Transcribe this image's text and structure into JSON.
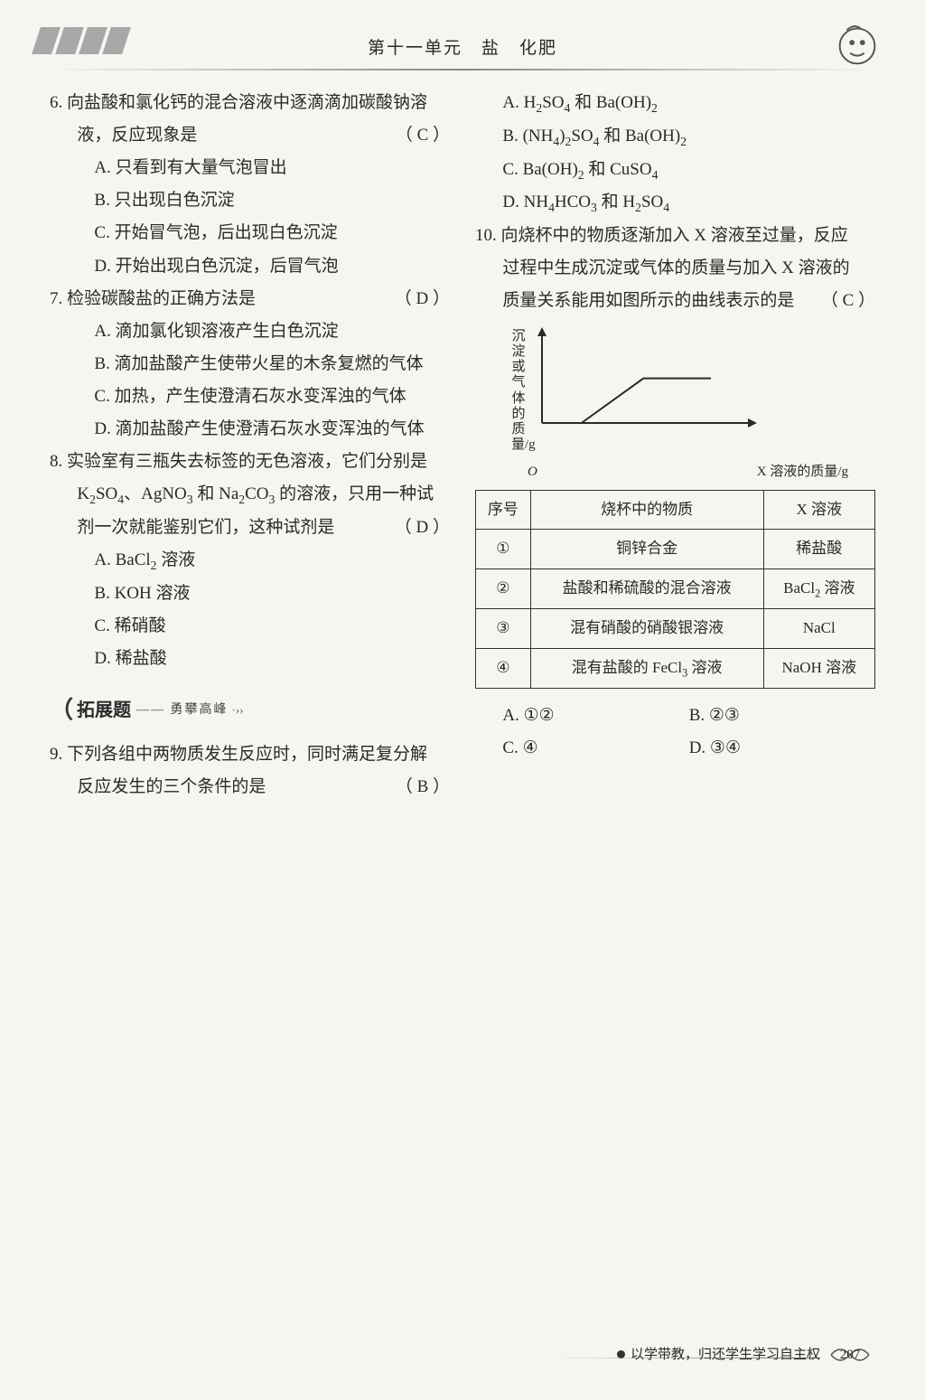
{
  "header": {
    "title": "第十一单元　盐　化肥"
  },
  "q6": {
    "stem": "6. 向盐酸和氯化钙的混合溶液中逐滴滴加碳酸钠溶液，反应现象是",
    "answer": "（ C ）",
    "opts": {
      "A": "A. 只看到有大量气泡冒出",
      "B": "B. 只出现白色沉淀",
      "C": "C. 开始冒气泡，后出现白色沉淀",
      "D": "D. 开始出现白色沉淀，后冒气泡"
    }
  },
  "q7": {
    "stem": "7. 检验碳酸盐的正确方法是",
    "answer": "（ D ）",
    "opts": {
      "A": "A. 滴加氯化钡溶液产生白色沉淀",
      "B": "B. 滴加盐酸产生使带火星的木条复燃的气体",
      "C": "C. 加热，产生使澄清石灰水变浑浊的气体",
      "D": "D. 滴加盐酸产生使澄清石灰水变浑浊的气体"
    }
  },
  "q8": {
    "stem": "8. 实验室有三瓶失去标签的无色溶液，它们分别是 K₂SO₄、AgNO₃ 和 Na₂CO₃ 的溶液，只用一种试剂一次就能鉴别它们，这种试剂是",
    "answer": "（ D ）",
    "opts": {
      "A": "A. BaCl₂ 溶液",
      "B": "B. KOH 溶液",
      "C": "C. 稀硝酸",
      "D": "D. 稀盐酸"
    }
  },
  "section": {
    "label": "拓展题",
    "sub": "—— 勇攀高峰",
    "arrows": "·››"
  },
  "q9": {
    "stem": "9. 下列各组中两物质发生反应时，同时满足复分解反应发生的三个条件的是",
    "answer": "（ B ）",
    "opts": {
      "A": "A. H₂SO₄ 和 Ba(OH)₂",
      "B": "B. (NH₄)₂SO₄ 和 Ba(OH)₂",
      "C": "C. Ba(OH)₂ 和 CuSO₄",
      "D": "D. NH₄HCO₃ 和 H₂SO₄"
    }
  },
  "q10": {
    "stem": "10. 向烧杯中的物质逐渐加入 X 溶液至过量，反应过程中生成沉淀或气体的质量与加入 X 溶液的质量关系能用如图所示的曲线表示的是",
    "answer": "（ C ）",
    "chart": {
      "type": "line",
      "ylabel": "沉淀或气体的质量/g",
      "xlabel": "X 溶液的质量/g",
      "origin": "O",
      "axis_color": "#2a2a2a",
      "line_color": "#2a2a2a",
      "stroke_width": 2,
      "points": [
        [
          0,
          0
        ],
        [
          35,
          0
        ],
        [
          90,
          42
        ],
        [
          150,
          42
        ]
      ],
      "xrange": [
        0,
        170
      ],
      "yrange": [
        0,
        80
      ]
    },
    "table": {
      "columns": [
        "序号",
        "烧杯中的物质",
        "X 溶液"
      ],
      "rows": [
        [
          "①",
          "铜锌合金",
          "稀盐酸"
        ],
        [
          "②",
          "盐酸和稀硫酸的混合溶液",
          "BaCl₂ 溶液"
        ],
        [
          "③",
          "混有硝酸的硝酸银溶液",
          "NaCl"
        ],
        [
          "④",
          "混有盐酸的 FeCl₃ 溶液",
          "NaOH 溶液"
        ]
      ],
      "border_color": "#333333",
      "font_size": 17
    },
    "opts": {
      "A": "A. ①②",
      "B": "B. ②③",
      "C": "C. ④",
      "D": "D. ③④"
    }
  },
  "footer": {
    "motto": "以学带教，归还学生学习自主权",
    "page": "207"
  }
}
